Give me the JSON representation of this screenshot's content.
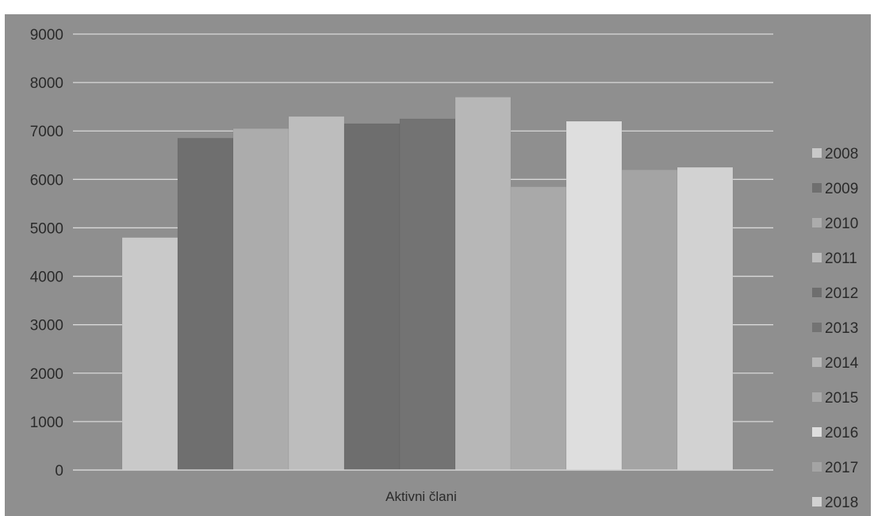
{
  "chart_data": {
    "type": "bar",
    "categories": [
      "Aktivni člani"
    ],
    "series": [
      {
        "name": "2008",
        "values": [
          4800
        ],
        "color": "#c9c9c9"
      },
      {
        "name": "2009",
        "values": [
          6850
        ],
        "color": "#6f6f6f"
      },
      {
        "name": "2010",
        "values": [
          7050
        ],
        "color": "#acacac"
      },
      {
        "name": "2011",
        "values": [
          7300
        ],
        "color": "#bdbdbd"
      },
      {
        "name": "2012",
        "values": [
          7150
        ],
        "color": "#6e6e6e"
      },
      {
        "name": "2013",
        "values": [
          7250
        ],
        "color": "#737373"
      },
      {
        "name": "2014",
        "values": [
          7700
        ],
        "color": "#b7b7b7"
      },
      {
        "name": "2015",
        "values": [
          5850
        ],
        "color": "#a9a9a9"
      },
      {
        "name": "2016",
        "values": [
          7200
        ],
        "color": "#dedede"
      },
      {
        "name": "2017",
        "values": [
          6200
        ],
        "color": "#a4a4a4"
      },
      {
        "name": "2018",
        "values": [
          6250
        ],
        "color": "#d2d2d2"
      }
    ],
    "ylim": [
      0,
      9000
    ],
    "yticks": [
      "0",
      "1000",
      "2000",
      "3000",
      "4000",
      "5000",
      "6000",
      "7000",
      "8000",
      "9000"
    ],
    "grid": true,
    "legend_position": "right",
    "background_color": "#8f8f8f",
    "gridline_color": "#d9d9d9"
  }
}
